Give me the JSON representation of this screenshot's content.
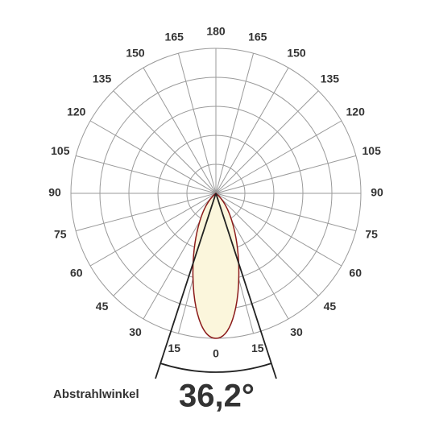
{
  "angle_labels": [
    "0",
    "15",
    "30",
    "45",
    "60",
    "75",
    "90",
    "105",
    "120",
    "135",
    "150",
    "165",
    "180",
    "165",
    "150",
    "135",
    "120",
    "105",
    "90",
    "75",
    "60",
    "45",
    "30",
    "15"
  ],
  "caption": {
    "label": "Abstrahlwinkel",
    "value": "36,2°"
  }
}
